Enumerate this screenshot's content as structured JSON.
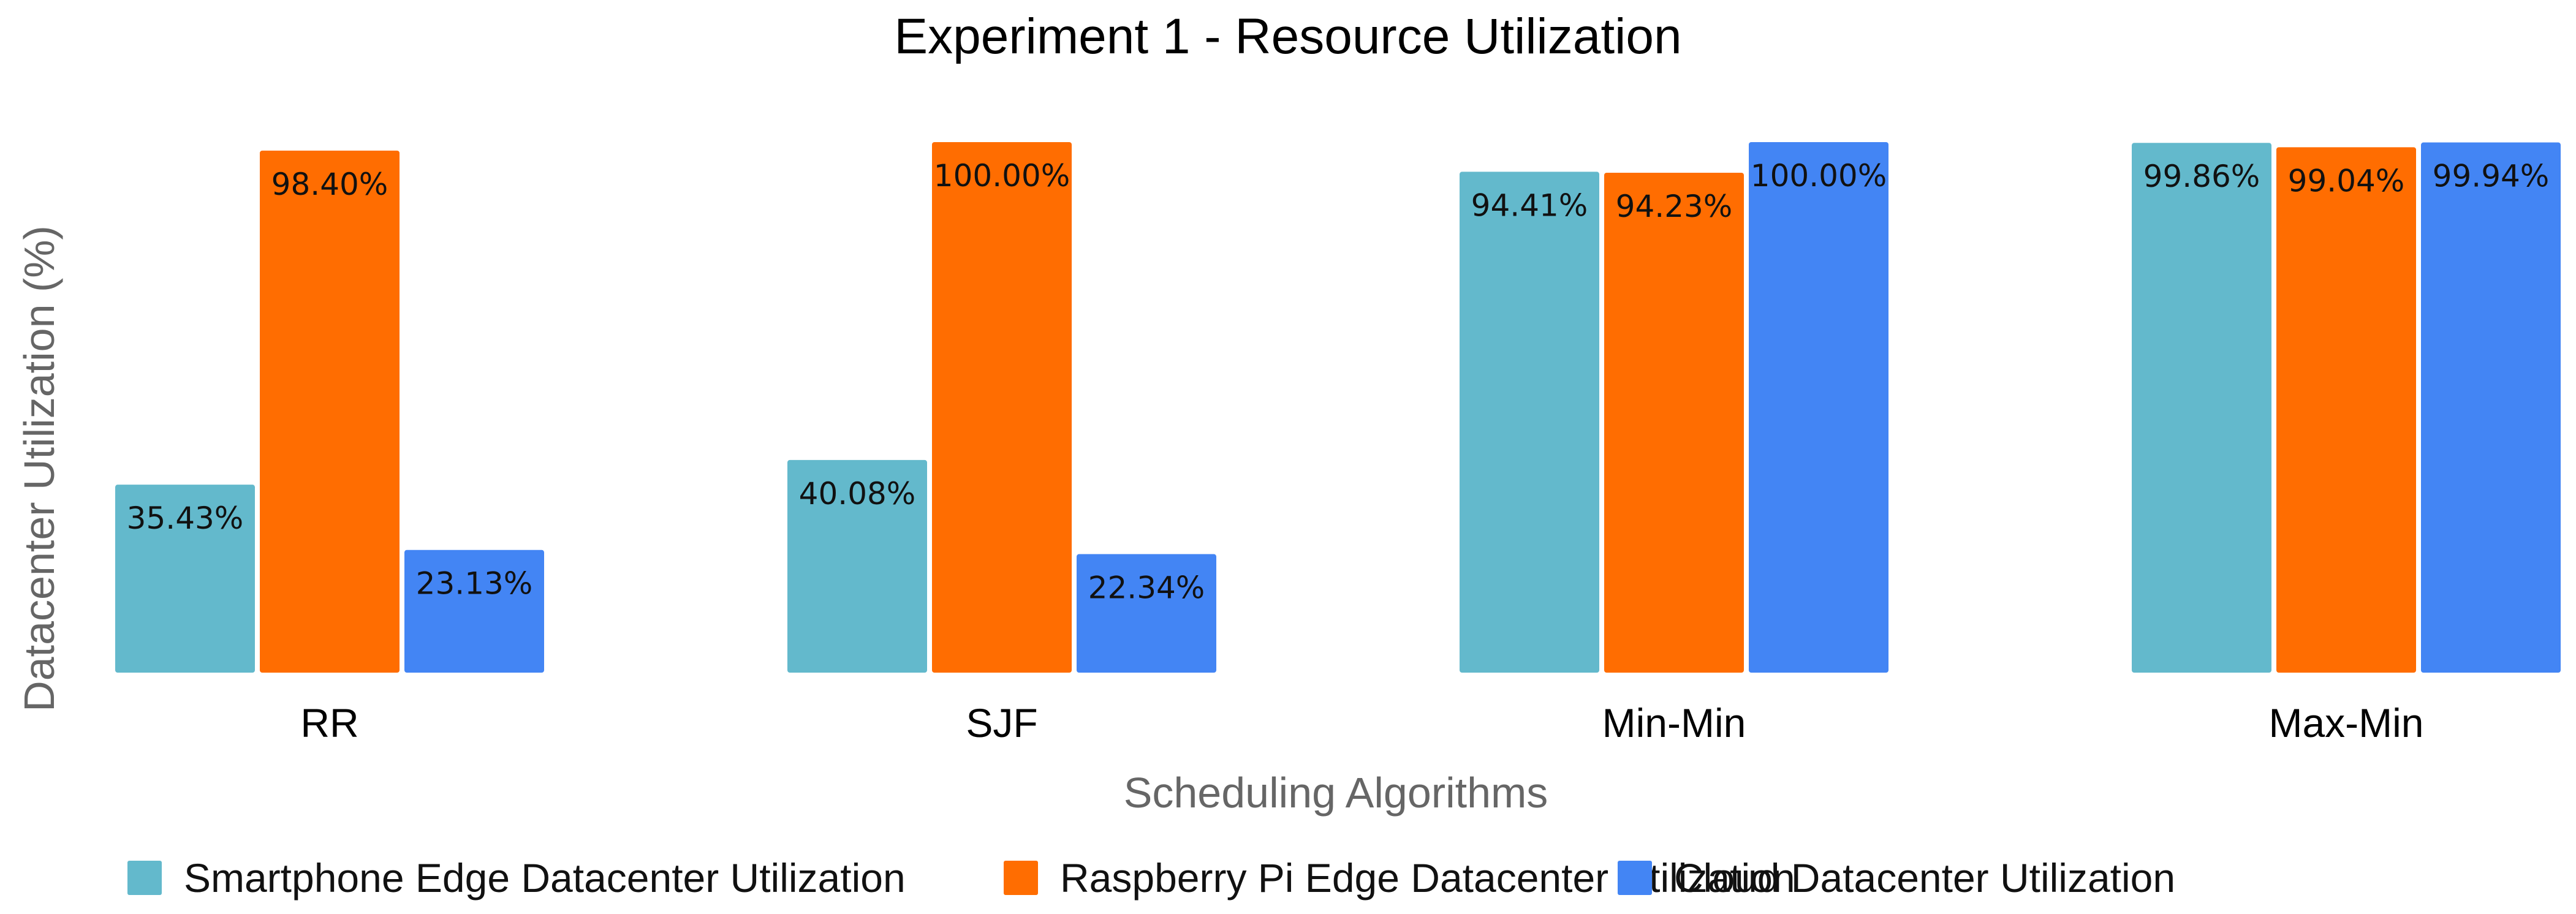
{
  "chart_data": {
    "type": "bar",
    "title": "Experiment 1 - Resource Utilization",
    "xlabel": "Scheduling Algorithms",
    "ylabel": "Datacenter Utilization (%)",
    "ylim": [
      0,
      100
    ],
    "grid": false,
    "legend_position": "bottom",
    "categories": [
      "RR",
      "SJF",
      "Min-Min",
      "Max-Min"
    ],
    "series": [
      {
        "name": "Smartphone Edge Datacenter Utilization",
        "color": "#63b9cc",
        "values": [
          35.43,
          40.08,
          94.41,
          99.86
        ],
        "labels": [
          "35.43%",
          "40.08%",
          "94.41%",
          "99.86%"
        ]
      },
      {
        "name": "Raspberry Pi Edge Datacenter Utilization",
        "color": "#ff6d01",
        "values": [
          98.4,
          100.0,
          94.23,
          99.04
        ],
        "labels": [
          "98.40%",
          "100.00%",
          "94.23%",
          "99.04%"
        ]
      },
      {
        "name": "Cloud Datacenter Utilization",
        "color": "#4385f4",
        "values": [
          23.13,
          22.34,
          100.0,
          99.94
        ],
        "labels": [
          "23.13%",
          "22.34%",
          "100.00%",
          "99.94%"
        ]
      }
    ]
  }
}
